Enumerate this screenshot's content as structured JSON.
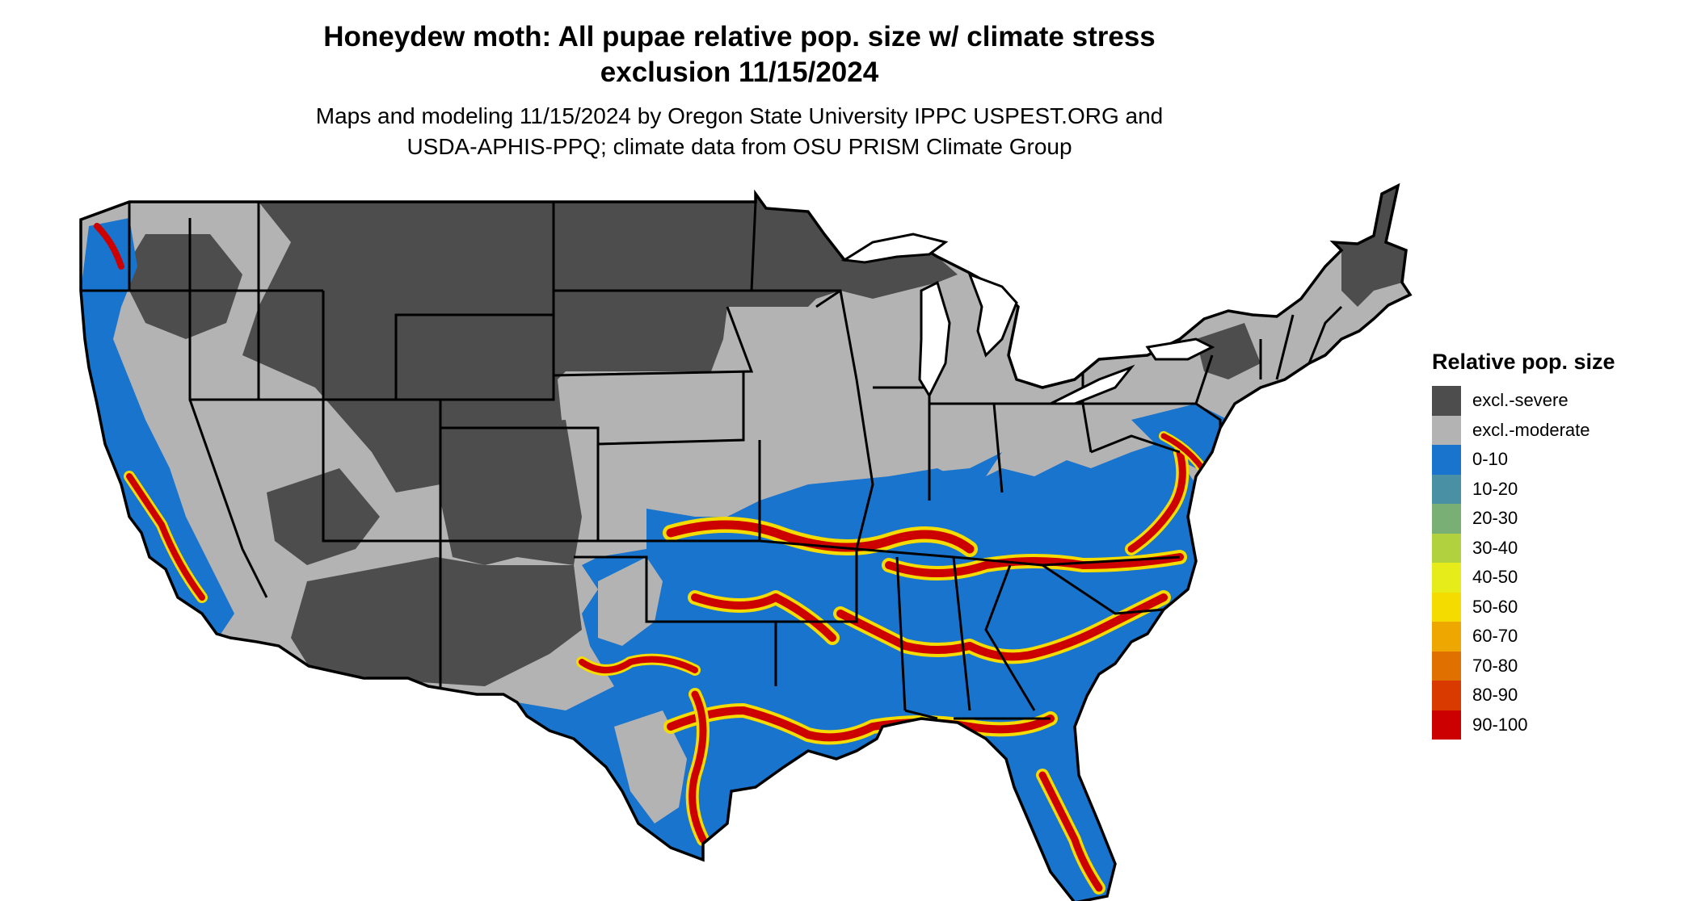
{
  "title": {
    "line1": "Honeydew moth: All pupae relative pop. size w/ climate stress",
    "line2": "exclusion 11/15/2024"
  },
  "subtitle": {
    "line1": "Maps and modeling 11/15/2024 by Oregon State University IPPC USPEST.ORG and",
    "line2": "USDA-APHIS-PPQ; climate data from OSU PRISM Climate Group"
  },
  "legend": {
    "title": "Relative pop. size",
    "items": [
      {
        "label": "excl.-severe",
        "color": "#4d4d4d"
      },
      {
        "label": "excl.-moderate",
        "color": "#b3b3b3"
      },
      {
        "label": "0-10",
        "color": "#1874cd"
      },
      {
        "label": "10-20",
        "color": "#4a90a4"
      },
      {
        "label": "20-30",
        "color": "#79ae75"
      },
      {
        "label": "30-40",
        "color": "#b2d13f"
      },
      {
        "label": "40-50",
        "color": "#e6ec19"
      },
      {
        "label": "50-60",
        "color": "#f5dc00"
      },
      {
        "label": "60-70",
        "color": "#eea600"
      },
      {
        "label": "70-80",
        "color": "#e07000"
      },
      {
        "label": "80-90",
        "color": "#d93a00"
      },
      {
        "label": "90-100",
        "color": "#cd0000"
      }
    ]
  }
}
